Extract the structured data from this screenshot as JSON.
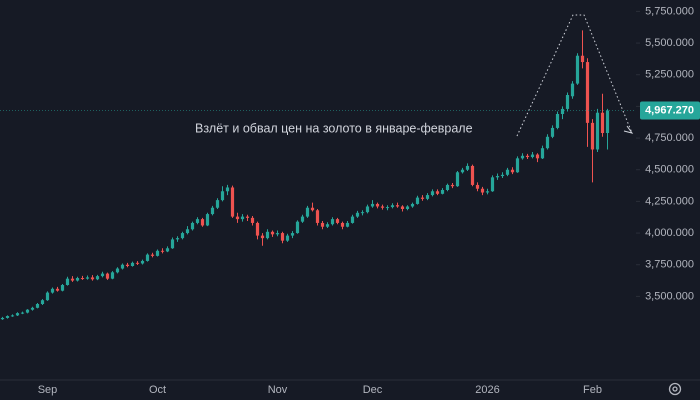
{
  "chart_data": {
    "type": "candlestick",
    "annotation": "Взлёт и обвал цен на золото в январе-феврале",
    "up_color": "#26a69a",
    "down_color": "#ef5350",
    "ylim": [
      2840,
      5840
    ],
    "yticks": [
      {
        "value": 5750,
        "label": "5,750.000"
      },
      {
        "value": 5500,
        "label": "5,500.000"
      },
      {
        "value": 5250,
        "label": "5,250.000"
      },
      {
        "value": 5000,
        "label": "5,000.000"
      },
      {
        "value": 4750,
        "label": "4,750.000"
      },
      {
        "value": 4500,
        "label": "4,500.000"
      },
      {
        "value": 4250,
        "label": "4,250.000"
      },
      {
        "value": 4000,
        "label": "4,000.000"
      },
      {
        "value": 3750,
        "label": "3,750.000"
      },
      {
        "value": 3500,
        "label": "3,500.000"
      }
    ],
    "grid": false,
    "price_label": {
      "value": 4967.27,
      "label": "4,967.270"
    },
    "categories": [
      null,
      null,
      null,
      null,
      null,
      null,
      null,
      null,
      null,
      "Sep",
      null,
      null,
      null,
      null,
      null,
      null,
      null,
      null,
      null,
      null,
      null,
      null,
      null,
      null,
      null,
      null,
      null,
      null,
      null,
      null,
      null,
      "Oct",
      null,
      null,
      null,
      null,
      null,
      null,
      null,
      null,
      null,
      null,
      null,
      null,
      null,
      null,
      null,
      null,
      null,
      null,
      null,
      null,
      null,
      null,
      null,
      "Nov",
      null,
      null,
      null,
      null,
      null,
      null,
      null,
      null,
      null,
      null,
      null,
      null,
      null,
      null,
      null,
      null,
      null,
      null,
      "Dec",
      null,
      null,
      null,
      null,
      null,
      null,
      null,
      null,
      null,
      null,
      null,
      null,
      null,
      null,
      null,
      null,
      null,
      null,
      null,
      null,
      null,
      null,
      "2026",
      null,
      null,
      null,
      null,
      null,
      null,
      null,
      null,
      null,
      null,
      null,
      null,
      null,
      null,
      null,
      null,
      null,
      null,
      null,
      null,
      "Feb",
      null,
      null,
      null
    ],
    "candles": [
      [
        3320,
        3338,
        3315,
        3330
      ],
      [
        3330,
        3350,
        3325,
        3345
      ],
      [
        3345,
        3358,
        3338,
        3350
      ],
      [
        3350,
        3375,
        3345,
        3368
      ],
      [
        3368,
        3380,
        3360,
        3372
      ],
      [
        3372,
        3400,
        3366,
        3395
      ],
      [
        3395,
        3418,
        3388,
        3410
      ],
      [
        3410,
        3448,
        3405,
        3440
      ],
      [
        3440,
        3478,
        3432,
        3470
      ],
      [
        3470,
        3540,
        3465,
        3530
      ],
      [
        3530,
        3570,
        3522,
        3560
      ],
      [
        3560,
        3575,
        3538,
        3545
      ],
      [
        3545,
        3598,
        3540,
        3590
      ],
      [
        3590,
        3655,
        3585,
        3640
      ],
      [
        3640,
        3660,
        3615,
        3625
      ],
      [
        3625,
        3655,
        3618,
        3645
      ],
      [
        3645,
        3662,
        3630,
        3640
      ],
      [
        3640,
        3665,
        3632,
        3650
      ],
      [
        3650,
        3668,
        3625,
        3635
      ],
      [
        3635,
        3670,
        3628,
        3660
      ],
      [
        3660,
        3695,
        3650,
        3680
      ],
      [
        3680,
        3688,
        3630,
        3640
      ],
      [
        3640,
        3700,
        3635,
        3690
      ],
      [
        3690,
        3730,
        3682,
        3720
      ],
      [
        3720,
        3760,
        3712,
        3750
      ],
      [
        3750,
        3765,
        3730,
        3740
      ],
      [
        3740,
        3775,
        3735,
        3765
      ],
      [
        3765,
        3778,
        3748,
        3760
      ],
      [
        3760,
        3790,
        3752,
        3780
      ],
      [
        3780,
        3840,
        3775,
        3830
      ],
      [
        3830,
        3845,
        3808,
        3820
      ],
      [
        3820,
        3870,
        3815,
        3860
      ],
      [
        3860,
        3880,
        3840,
        3855
      ],
      [
        3855,
        3895,
        3850,
        3880
      ],
      [
        3880,
        3965,
        3875,
        3950
      ],
      [
        3950,
        3975,
        3930,
        3960
      ],
      [
        3960,
        4010,
        3950,
        4000
      ],
      [
        4000,
        4055,
        3990,
        4030
      ],
      [
        4030,
        4090,
        4020,
        4080
      ],
      [
        4080,
        4125,
        4070,
        4110
      ],
      [
        4110,
        4120,
        4050,
        4060
      ],
      [
        4060,
        4160,
        4055,
        4150
      ],
      [
        4150,
        4215,
        4140,
        4200
      ],
      [
        4200,
        4275,
        4190,
        4260
      ],
      [
        4260,
        4370,
        4250,
        4330
      ],
      [
        4330,
        4380,
        4300,
        4360
      ],
      [
        4360,
        4375,
        4120,
        4130
      ],
      [
        4130,
        4160,
        4080,
        4110
      ],
      [
        4110,
        4150,
        4090,
        4130
      ],
      [
        4130,
        4145,
        4095,
        4120
      ],
      [
        4120,
        4135,
        4060,
        4080
      ],
      [
        4080,
        4090,
        3950,
        3980
      ],
      [
        3980,
        4000,
        3900,
        3960
      ],
      [
        3960,
        4030,
        3950,
        4010
      ],
      [
        4010,
        4020,
        3970,
        3990
      ],
      [
        3990,
        4020,
        3975,
        4000
      ],
      [
        4000,
        4010,
        3920,
        3940
      ],
      [
        3940,
        3995,
        3930,
        3980
      ],
      [
        3980,
        4015,
        3960,
        4000
      ],
      [
        4000,
        4100,
        3995,
        4090
      ],
      [
        4090,
        4145,
        4080,
        4130
      ],
      [
        4130,
        4215,
        4120,
        4200
      ],
      [
        4200,
        4240,
        4170,
        4180
      ],
      [
        4180,
        4190,
        4060,
        4080
      ],
      [
        4080,
        4095,
        4030,
        4050
      ],
      [
        4050,
        4085,
        4040,
        4070
      ],
      [
        4070,
        4125,
        4060,
        4110
      ],
      [
        4110,
        4120,
        4070,
        4080
      ],
      [
        4080,
        4090,
        4030,
        4050
      ],
      [
        4050,
        4095,
        4045,
        4080
      ],
      [
        4080,
        4145,
        4075,
        4130
      ],
      [
        4130,
        4175,
        4120,
        4160
      ],
      [
        4160,
        4180,
        4140,
        4165
      ],
      [
        4165,
        4225,
        4155,
        4210
      ],
      [
        4210,
        4260,
        4200,
        4230
      ],
      [
        4230,
        4240,
        4195,
        4210
      ],
      [
        4210,
        4225,
        4185,
        4200
      ],
      [
        4200,
        4220,
        4180,
        4205
      ],
      [
        4205,
        4235,
        4195,
        4220
      ],
      [
        4220,
        4240,
        4200,
        4210
      ],
      [
        4210,
        4220,
        4170,
        4190
      ],
      [
        4190,
        4220,
        4180,
        4210
      ],
      [
        4210,
        4240,
        4200,
        4230
      ],
      [
        4230,
        4295,
        4225,
        4280
      ],
      [
        4280,
        4300,
        4255,
        4270
      ],
      [
        4270,
        4315,
        4260,
        4300
      ],
      [
        4300,
        4345,
        4290,
        4330
      ],
      [
        4330,
        4345,
        4300,
        4310
      ],
      [
        4310,
        4355,
        4305,
        4340
      ],
      [
        4340,
        4390,
        4330,
        4380
      ],
      [
        4380,
        4395,
        4355,
        4370
      ],
      [
        4370,
        4490,
        4365,
        4480
      ],
      [
        4480,
        4515,
        4470,
        4500
      ],
      [
        4500,
        4550,
        4490,
        4530
      ],
      [
        4530,
        4540,
        4370,
        4380
      ],
      [
        4380,
        4400,
        4330,
        4350
      ],
      [
        4350,
        4365,
        4300,
        4320
      ],
      [
        4320,
        4350,
        4305,
        4330
      ],
      [
        4330,
        4455,
        4325,
        4440
      ],
      [
        4440,
        4470,
        4420,
        4450
      ],
      [
        4450,
        4480,
        4435,
        4460
      ],
      [
        4460,
        4515,
        4450,
        4500
      ],
      [
        4500,
        4520,
        4465,
        4480
      ],
      [
        4480,
        4605,
        4475,
        4590
      ],
      [
        4590,
        4630,
        4580,
        4610
      ],
      [
        4610,
        4625,
        4585,
        4600
      ],
      [
        4600,
        4640,
        4590,
        4620
      ],
      [
        4620,
        4630,
        4560,
        4590
      ],
      [
        4590,
        4690,
        4585,
        4670
      ],
      [
        4670,
        4780,
        4660,
        4760
      ],
      [
        4760,
        4850,
        4750,
        4830
      ],
      [
        4830,
        4960,
        4820,
        4940
      ],
      [
        4940,
        5000,
        4900,
        4980
      ],
      [
        4980,
        5110,
        4960,
        5090
      ],
      [
        5080,
        5200,
        5060,
        5180
      ],
      [
        5180,
        5420,
        5170,
        5400
      ],
      [
        5400,
        5600,
        5300,
        5350
      ],
      [
        5350,
        5380,
        4680,
        4870
      ],
      [
        4870,
        4900,
        4400,
        4660
      ],
      [
        4660,
        4980,
        4640,
        4950
      ],
      [
        4950,
        5100,
        4760,
        4790
      ],
      [
        4790,
        4980,
        4660,
        4967.27
      ]
    ]
  }
}
